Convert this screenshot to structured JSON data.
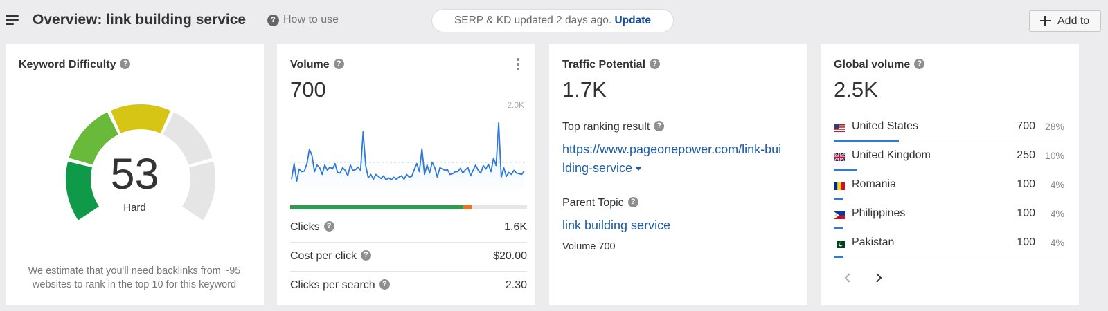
{
  "header": {
    "title": "Overview: link building service",
    "how_to_use": "How to use",
    "serp_status": "SERP & KD updated 2 days ago.",
    "update_link": "Update",
    "add_to": "Add to"
  },
  "keyword_difficulty": {
    "title": "Keyword Difficulty",
    "value": "53",
    "level": "Hard",
    "score": 53,
    "max": 100,
    "note": "We estimate that you'll need backlinks from ~95 websites to rank in the top 10 for this keyword"
  },
  "volume": {
    "title": "Volume",
    "value": "700",
    "chart_max_label": "2.0K",
    "clicks_share": {
      "organic": 0.73,
      "paid": 0.04
    },
    "rows": [
      {
        "label": "Clicks",
        "value": "1.6K"
      },
      {
        "label": "Cost per click",
        "value": "$20.00"
      },
      {
        "label": "Clicks per search",
        "value": "2.30"
      }
    ]
  },
  "chart_data": {
    "type": "line",
    "title": "",
    "ylim": [
      0,
      2000
    ],
    "y_tick_labels": [
      "2.0K"
    ],
    "reference_value": 700,
    "values": [
      650,
      880,
      620,
      800,
      760,
      770,
      880,
      1090,
      1000,
      760,
      860,
      820,
      720,
      860,
      780,
      830,
      800,
      880,
      750,
      740,
      820,
      780,
      700,
      860,
      780,
      790,
      830,
      780,
      1350,
      850,
      670,
      720,
      650,
      720,
      690,
      660,
      700,
      640,
      670,
      640,
      680,
      650,
      680,
      700,
      650,
      720,
      680,
      690,
      790,
      880,
      760,
      1100,
      720,
      860,
      740,
      900,
      820,
      680,
      820,
      800,
      780,
      790,
      720,
      730,
      760,
      760,
      810,
      740,
      790,
      820,
      700,
      780,
      860,
      780,
      740,
      850,
      800,
      870,
      760,
      960,
      850,
      1480,
      680,
      820,
      690,
      750,
      720,
      780,
      740,
      730,
      720,
      770
    ],
    "series": [
      {
        "values": []
      }
    ]
  },
  "traffic_potential": {
    "title": "Traffic Potential",
    "value": "1.7K",
    "top_result_label": "Top ranking result",
    "top_result_url_line1": "https://www.pageonepower.com/link-bui",
    "top_result_url_line2": "lding-service",
    "parent_topic_label": "Parent Topic",
    "parent_topic": "link building service",
    "parent_volume": "Volume 700"
  },
  "global_volume": {
    "title": "Global volume",
    "value": "2.5K",
    "countries": [
      {
        "name": "United States",
        "volume": "700",
        "pct": "28%",
        "share": 0.28,
        "flag": "us-flag"
      },
      {
        "name": "United Kingdom",
        "volume": "250",
        "pct": "10%",
        "share": 0.1,
        "flag": "uk-flag"
      },
      {
        "name": "Romania",
        "volume": "100",
        "pct": "4%",
        "share": 0.04,
        "flag": "ro-flag"
      },
      {
        "name": "Philippines",
        "volume": "100",
        "pct": "4%",
        "share": 0.04,
        "flag": "ph-flag"
      },
      {
        "name": "Pakistan",
        "volume": "100",
        "pct": "4%",
        "share": 0.04,
        "flag": "pk-flag"
      }
    ]
  },
  "colors": {
    "accent_blue": "#1a5aa8",
    "line_blue": "#2f7ad6",
    "organic_green": "#2a9d4e",
    "paid_orange": "#f0711f",
    "gauge_track": "#e5e5e5"
  }
}
